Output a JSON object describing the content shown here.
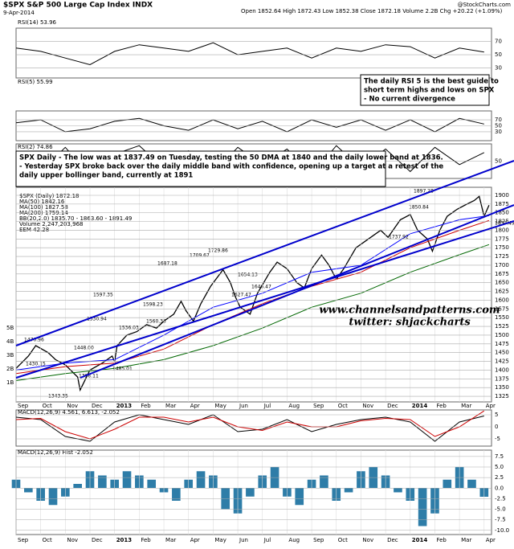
{
  "header": {
    "title": "$SPX S&P 500 Large Cap Index INDX",
    "date": "9-Apr-2014",
    "quote": "Open 1852.64 High 1872.43 Low 1852.38 Close 1872.18 Volume 2.2B Chg +20.22 (+1.09%)",
    "brand": "@StockCharts.com"
  },
  "watermark": [
    "www.channelsandpatterns.com",
    "twitter: shjackcharts"
  ],
  "notes": [
    {
      "lines": [
        "The daily RSI 5 is the best guide to",
        "short term highs and lows on SPX",
        "- No current divergence"
      ]
    },
    {
      "lines": [
        "SPX Daily - The low was at 1837.49 on Tuesday, testing the 50 DMA at 1840 and the daily lower band at 1836.",
        "- Yesterday SPX broke back over the daily middle band with confidence, opening up a target at a retest of the",
        "daily upper bollinger band, currently at 1891"
      ]
    }
  ],
  "chart_data": [
    {
      "type": "line",
      "title": "RSI(14) 53.96",
      "xlim": [
        0,
        19.3
      ],
      "ylim": [
        15,
        90
      ],
      "yticks": [
        30,
        50,
        70
      ],
      "series": [
        {
          "color": "#000000",
          "x": [
            0,
            1,
            2,
            3,
            4,
            5,
            6,
            7,
            8,
            9,
            10,
            11,
            12,
            13,
            14,
            15,
            16,
            17,
            18,
            19
          ],
          "values": [
            60,
            55,
            45,
            35,
            55,
            65,
            60,
            55,
            68,
            50,
            55,
            60,
            45,
            60,
            55,
            65,
            62,
            45,
            60,
            54
          ]
        }
      ]
    },
    {
      "type": "line",
      "title": "RSI(5) 55.99",
      "xlim": [
        0,
        19.3
      ],
      "ylim": [
        0,
        100
      ],
      "yticks": [
        30,
        50,
        70
      ],
      "series": [
        {
          "color": "#000000",
          "x": [
            0,
            1,
            2,
            3,
            4,
            5,
            6,
            7,
            8,
            9,
            10,
            11,
            12,
            13,
            14,
            15,
            16,
            17,
            18,
            19
          ],
          "values": [
            60,
            70,
            30,
            40,
            65,
            75,
            50,
            35,
            70,
            40,
            65,
            30,
            70,
            45,
            70,
            35,
            70,
            30,
            75,
            56
          ]
        }
      ]
    },
    {
      "type": "line",
      "title": "RSI(2) 74.86",
      "xlim": [
        0,
        19.3
      ],
      "ylim": [
        0,
        100
      ],
      "yticks": [
        50
      ],
      "series": [
        {
          "color": "#000000",
          "x": [
            0,
            1,
            2,
            3,
            4,
            5,
            6,
            7,
            8,
            9,
            10,
            11,
            12,
            13,
            14,
            15,
            16,
            17,
            18,
            19
          ],
          "values": [
            80,
            20,
            90,
            10,
            70,
            95,
            30,
            80,
            15,
            90,
            40,
            85,
            10,
            95,
            30,
            85,
            20,
            90,
            40,
            75
          ]
        }
      ]
    },
    {
      "type": "line",
      "xlim": [
        0,
        19.3
      ],
      "ylim": [
        1309,
        1923
      ],
      "yticks": [
        1325,
        1350,
        1375,
        1400,
        1425,
        1450,
        1475,
        1500,
        1525,
        1550,
        1575,
        1600,
        1625,
        1650,
        1675,
        1700,
        1725,
        1750,
        1775,
        1800,
        1825,
        1850,
        1875,
        1900
      ],
      "xticks": [
        {
          "value": 0,
          "label": "Sep"
        },
        {
          "value": 1,
          "label": "Oct"
        },
        {
          "value": 2,
          "label": "Nov"
        },
        {
          "value": 3,
          "label": "Dec"
        },
        {
          "value": 4,
          "label": "2013"
        },
        {
          "value": 5,
          "label": "Feb"
        },
        {
          "value": 6,
          "label": "Mar"
        },
        {
          "value": 7,
          "label": "Apr"
        },
        {
          "value": 8,
          "label": "May"
        },
        {
          "value": 9,
          "label": "Jun"
        },
        {
          "value": 10,
          "label": "Jul"
        },
        {
          "value": 11,
          "label": "Aug"
        },
        {
          "value": 12,
          "label": "Sep"
        },
        {
          "value": 13,
          "label": "Oct"
        },
        {
          "value": 14,
          "label": "Nov"
        },
        {
          "value": 15,
          "label": "Dec"
        },
        {
          "value": 16,
          "label": "2014"
        },
        {
          "value": 17,
          "label": "Feb"
        },
        {
          "value": 18,
          "label": "Mar"
        },
        {
          "value": 19,
          "label": "Apr"
        }
      ],
      "series": [
        {
          "name": "$SPX (Daily) 1872.18",
          "color": "#000000",
          "x": [
            0,
            0.5,
            0.8,
            1.3,
            1.6,
            2.0,
            2.5,
            2.6,
            3.0,
            3.5,
            3.9,
            4.0,
            4.1,
            4.5,
            4.9,
            5.3,
            5.7,
            6.0,
            6.4,
            6.7,
            6.9,
            7.2,
            7.5,
            7.9,
            8.4,
            8.7,
            8.9,
            9.1,
            9.5,
            9.8,
            10.3,
            10.6,
            11.0,
            11.4,
            11.7,
            12.0,
            12.4,
            12.7,
            13.0,
            13.3,
            13.8,
            14.4,
            14.8,
            15.1,
            15.6,
            16.0,
            16.3,
            16.7,
            16.9,
            17.2,
            17.5,
            17.9,
            18.3,
            18.6,
            18.8,
            19.0,
            19.2
          ],
          "values": [
            1405,
            1440,
            1470,
            1450,
            1430,
            1415,
            1380,
            1343,
            1400,
            1420,
            1440,
            1425,
            1470,
            1500,
            1510,
            1530,
            1520,
            1540,
            1560,
            1597,
            1570,
            1540,
            1590,
            1640,
            1687,
            1650,
            1610,
            1580,
            1560,
            1620,
            1680,
            1709,
            1690,
            1650,
            1635,
            1690,
            1729,
            1700,
            1660,
            1690,
            1750,
            1780,
            1800,
            1780,
            1830,
            1845,
            1800,
            1775,
            1740,
            1800,
            1840,
            1860,
            1875,
            1885,
            1897,
            1840,
            1872
          ]
        },
        {
          "name": "MA(50) 1842.16",
          "color": "#0000ff",
          "x": [
            0,
            2,
            4,
            6,
            8,
            10,
            12,
            14,
            16,
            18,
            19.2
          ],
          "values": [
            1400,
            1420,
            1430,
            1500,
            1580,
            1620,
            1680,
            1700,
            1790,
            1830,
            1842
          ]
        },
        {
          "name": "MA(100) 1827.58",
          "color": "#cc0000",
          "x": [
            0,
            2,
            4,
            6,
            8,
            10,
            12,
            14,
            16,
            18,
            19.2
          ],
          "values": [
            1390,
            1410,
            1420,
            1460,
            1530,
            1590,
            1640,
            1680,
            1750,
            1800,
            1828
          ]
        },
        {
          "name": "MA(200) 1759.14",
          "color": "#006600",
          "x": [
            0,
            2,
            4,
            6,
            8,
            10,
            12,
            14,
            16,
            18,
            19.2
          ],
          "values": [
            1370,
            1390,
            1405,
            1430,
            1470,
            1520,
            1580,
            1620,
            1680,
            1730,
            1759
          ]
        }
      ],
      "legend_extra": [
        "BB(20,2.0) 1835.70 - 1863.60 - 1891.49",
        "Volume 2,247,203,968",
        "EEM 42.28"
      ],
      "volume_labels": [
        "5B",
        "4B",
        "3B",
        "2B",
        "1B"
      ],
      "annotations": [
        "1470.96",
        "1430.15",
        "1448.00",
        "1343.35",
        "1398.11",
        "1485.01",
        "1530.94",
        "1597.35",
        "1536.03",
        "1687.18",
        "1654.13",
        "1598.23",
        "1560.33",
        "1709.67",
        "1729.86",
        "1627.47",
        "1646.47",
        "1850.84",
        "1737.92",
        "1897.28",
        "1837.49"
      ]
    },
    {
      "type": "line",
      "title": "MACD(12,26,9) 4.561, 6.613, -2.052",
      "xlim": [
        0,
        19.3
      ],
      "ylim": [
        -8,
        7
      ],
      "yticks": [
        -5,
        0,
        5
      ],
      "series": [
        {
          "color": "#000000",
          "x": [
            0,
            1,
            2,
            3,
            4,
            5,
            6,
            7,
            8,
            9,
            10,
            11,
            12,
            13,
            14,
            15,
            16,
            17,
            18,
            19
          ],
          "values": [
            4,
            3,
            -4,
            -6,
            2,
            5,
            3,
            1,
            5,
            -2,
            -1,
            3,
            -2,
            1,
            3,
            4,
            2,
            -6,
            2,
            4.5
          ]
        },
        {
          "color": "#cc0000",
          "x": [
            0,
            1,
            2,
            3,
            4,
            5,
            6,
            7,
            8,
            9,
            10,
            11,
            12,
            13,
            14,
            15,
            16,
            17,
            18,
            19
          ],
          "values": [
            3,
            3.5,
            -2,
            -5,
            -1,
            4,
            4,
            2,
            4,
            0,
            -1.5,
            2,
            0,
            0,
            2.5,
            3.5,
            3,
            -4,
            0,
            6.6
          ]
        }
      ]
    },
    {
      "type": "bar",
      "title": "MACD(12,26,9) Hist -2.052",
      "xlim": [
        0,
        19.3
      ],
      "ylim": [
        -11,
        9
      ],
      "yticks": [
        {
          "value": 7.5,
          "label": "7.5"
        },
        {
          "value": 5,
          "label": "5.0"
        },
        {
          "value": 2.5,
          "label": "2.5"
        },
        {
          "value": 0,
          "label": "0.0"
        },
        {
          "value": -2.5,
          "label": "-2.5"
        },
        {
          "value": -5,
          "label": "-5.0"
        },
        {
          "value": -7.5,
          "label": "-7.5"
        },
        {
          "value": -10,
          "label": "-10.0"
        }
      ],
      "xticks": [
        {
          "value": 0,
          "label": "Sep"
        },
        {
          "value": 1,
          "label": "Oct"
        },
        {
          "value": 2,
          "label": "Nov"
        },
        {
          "value": 3,
          "label": "Dec"
        },
        {
          "value": 4,
          "label": "2013"
        },
        {
          "value": 5,
          "label": "Feb"
        },
        {
          "value": 6,
          "label": "Mar"
        },
        {
          "value": 7,
          "label": "Apr"
        },
        {
          "value": 8,
          "label": "May"
        },
        {
          "value": 9,
          "label": "Jun"
        },
        {
          "value": 10,
          "label": "Jul"
        },
        {
          "value": 11,
          "label": "Aug"
        },
        {
          "value": 12,
          "label": "Sep"
        },
        {
          "value": 13,
          "label": "Oct"
        },
        {
          "value": 14,
          "label": "Nov"
        },
        {
          "value": 15,
          "label": "Dec"
        },
        {
          "value": 16,
          "label": "2014"
        },
        {
          "value": 17,
          "label": "Feb"
        },
        {
          "value": 18,
          "label": "Mar"
        },
        {
          "value": 19,
          "label": "Apr"
        }
      ],
      "color": "#2e7da8",
      "x": [
        0,
        0.5,
        1,
        1.5,
        2,
        2.5,
        3,
        3.5,
        4,
        4.5,
        5,
        5.5,
        6,
        6.5,
        7,
        7.5,
        8,
        8.5,
        9,
        9.5,
        10,
        10.5,
        11,
        11.5,
        12,
        12.5,
        13,
        13.5,
        14,
        14.5,
        15,
        15.5,
        16,
        16.5,
        17,
        17.5,
        18,
        18.5,
        19
      ],
      "values": [
        2,
        -1,
        -3,
        -4,
        -2,
        1,
        4,
        3,
        2,
        4,
        3,
        2,
        -1,
        -3,
        2,
        4,
        3,
        -5,
        -6,
        -2,
        3,
        5,
        -2,
        -4,
        2,
        3,
        -3,
        -1,
        4,
        5,
        3,
        -1,
        -3,
        -9,
        -6,
        2,
        5,
        2,
        -2.052
      ]
    }
  ]
}
